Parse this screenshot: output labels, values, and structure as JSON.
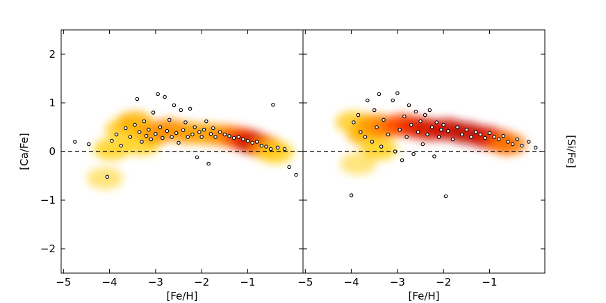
{
  "chart_data": [
    {
      "type": "scatter",
      "title": "",
      "xlabel": "[Fe/H]",
      "ylabel": "[Ca/Fe]",
      "xlim": [
        -5.05,
        0.2
      ],
      "ylim": [
        -2.5,
        2.5
      ],
      "xticks": [
        -5,
        -4,
        -3,
        -2,
        -1
      ],
      "xtick_labels": [
        "−5",
        "−4",
        "−3",
        "−2",
        "−1"
      ],
      "yticks": [
        -2,
        -1,
        0,
        1,
        2
      ],
      "ytick_labels": [
        "−2",
        "−1",
        "0",
        "1",
        "2"
      ],
      "reference_line": {
        "y": 0,
        "style": "dashed"
      },
      "grid": false,
      "density_band": [
        {
          "x": -3.95,
          "y": 0.05,
          "color": "#ffd21a"
        },
        {
          "x": -3.7,
          "y": 0.45,
          "color": "#ffcc22"
        },
        {
          "x": -3.45,
          "y": 0.6,
          "color": "#ffb000"
        },
        {
          "x": -3.3,
          "y": 0.15,
          "color": "#ffd21a"
        },
        {
          "x": -3.0,
          "y": 0.38,
          "color": "#ff9a00"
        },
        {
          "x": -2.7,
          "y": 0.45,
          "color": "#ff8c00"
        },
        {
          "x": -2.3,
          "y": 0.38,
          "color": "#ff9a00"
        },
        {
          "x": -1.9,
          "y": 0.36,
          "color": "#ffa500"
        },
        {
          "x": -1.5,
          "y": 0.33,
          "color": "#ff8c00"
        },
        {
          "x": -1.2,
          "y": 0.28,
          "color": "#ff5a00"
        },
        {
          "x": -1.0,
          "y": 0.22,
          "color": "#e82a00"
        },
        {
          "x": -0.8,
          "y": 0.15,
          "color": "#cc1100"
        },
        {
          "x": -0.6,
          "y": 0.08,
          "color": "#ff7a00"
        },
        {
          "x": -0.4,
          "y": -0.02,
          "color": "#ffd21a"
        },
        {
          "x": -4.1,
          "y": -0.55,
          "color": "#ffe066"
        }
      ],
      "points": [
        {
          "x": -4.75,
          "y": 0.2
        },
        {
          "x": -4.45,
          "y": 0.15
        },
        {
          "x": -4.05,
          "y": -0.52
        },
        {
          "x": -3.95,
          "y": 0.22
        },
        {
          "x": -3.85,
          "y": 0.35
        },
        {
          "x": -3.75,
          "y": 0.12
        },
        {
          "x": -3.65,
          "y": 0.48
        },
        {
          "x": -3.55,
          "y": 0.3
        },
        {
          "x": -3.45,
          "y": 0.55
        },
        {
          "x": -3.4,
          "y": 1.08
        },
        {
          "x": -3.35,
          "y": 0.4
        },
        {
          "x": -3.3,
          "y": 0.2
        },
        {
          "x": -3.25,
          "y": 0.62
        },
        {
          "x": -3.2,
          "y": 0.32
        },
        {
          "x": -3.15,
          "y": 0.45
        },
        {
          "x": -3.1,
          "y": 0.25
        },
        {
          "x": -3.05,
          "y": 0.8
        },
        {
          "x": -3.0,
          "y": 0.36
        },
        {
          "x": -2.95,
          "y": 1.18
        },
        {
          "x": -2.9,
          "y": 0.5
        },
        {
          "x": -2.85,
          "y": 0.28
        },
        {
          "x": -2.8,
          "y": 1.12
        },
        {
          "x": -2.75,
          "y": 0.42
        },
        {
          "x": -2.7,
          "y": 0.65
        },
        {
          "x": -2.65,
          "y": 0.3
        },
        {
          "x": -2.6,
          "y": 0.95
        },
        {
          "x": -2.55,
          "y": 0.38
        },
        {
          "x": -2.5,
          "y": 0.18
        },
        {
          "x": -2.45,
          "y": 0.85
        },
        {
          "x": -2.4,
          "y": 0.44
        },
        {
          "x": -2.35,
          "y": 0.6
        },
        {
          "x": -2.3,
          "y": 0.3
        },
        {
          "x": -2.25,
          "y": 0.88
        },
        {
          "x": -2.2,
          "y": 0.35
        },
        {
          "x": -2.15,
          "y": 0.5
        },
        {
          "x": -2.1,
          "y": -0.12
        },
        {
          "x": -2.05,
          "y": 0.4
        },
        {
          "x": -2.0,
          "y": 0.3
        },
        {
          "x": -1.95,
          "y": 0.45
        },
        {
          "x": -1.9,
          "y": 0.62
        },
        {
          "x": -1.85,
          "y": -0.25
        },
        {
          "x": -1.8,
          "y": 0.36
        },
        {
          "x": -1.75,
          "y": 0.48
        },
        {
          "x": -1.7,
          "y": 0.3
        },
        {
          "x": -1.6,
          "y": 0.4
        },
        {
          "x": -1.5,
          "y": 0.35
        },
        {
          "x": -1.4,
          "y": 0.32
        },
        {
          "x": -1.3,
          "y": 0.28
        },
        {
          "x": -1.2,
          "y": 0.3
        },
        {
          "x": -1.1,
          "y": 0.25
        },
        {
          "x": -1.0,
          "y": 0.22
        },
        {
          "x": -0.9,
          "y": 0.18
        },
        {
          "x": -0.8,
          "y": 0.2
        },
        {
          "x": -0.7,
          "y": 0.12
        },
        {
          "x": -0.6,
          "y": 0.1
        },
        {
          "x": -0.5,
          "y": 0.05
        },
        {
          "x": -0.45,
          "y": 0.96
        },
        {
          "x": -0.35,
          "y": 0.08
        },
        {
          "x": -0.2,
          "y": 0.05
        },
        {
          "x": -0.1,
          "y": -0.32
        },
        {
          "x": 0.05,
          "y": -0.48
        }
      ]
    },
    {
      "type": "scatter",
      "title": "",
      "xlabel": "[Fe/H]",
      "ylabel": "[Si/Fe]",
      "xlim": [
        -5.05,
        0.2
      ],
      "ylim": [
        -2.5,
        2.5
      ],
      "xticks": [
        -5,
        -4,
        -3,
        -2,
        -1
      ],
      "xtick_labels": [
        "−5",
        "−4",
        "−3",
        "−2",
        "−1"
      ],
      "reference_line": {
        "y": 0,
        "style": "dashed"
      },
      "grid": false,
      "density_band": [
        {
          "x": -3.95,
          "y": 0.6,
          "color": "#ffcc22"
        },
        {
          "x": -3.85,
          "y": -0.25,
          "color": "#ffe066"
        },
        {
          "x": -3.7,
          "y": 0.35,
          "color": "#ffb000"
        },
        {
          "x": -3.4,
          "y": 0.05,
          "color": "#ffd21a"
        },
        {
          "x": -3.5,
          "y": 0.55,
          "color": "#ff9a00"
        },
        {
          "x": -3.2,
          "y": 0.5,
          "color": "#ff7a00"
        },
        {
          "x": -2.9,
          "y": 0.55,
          "color": "#ff4a00"
        },
        {
          "x": -2.6,
          "y": 0.5,
          "color": "#e82a00"
        },
        {
          "x": -2.3,
          "y": 0.45,
          "color": "#d41a00"
        },
        {
          "x": -1.9,
          "y": 0.45,
          "color": "#cc1100"
        },
        {
          "x": -1.5,
          "y": 0.38,
          "color": "#c01000"
        },
        {
          "x": -1.1,
          "y": 0.3,
          "color": "#cc1100"
        },
        {
          "x": -0.8,
          "y": 0.22,
          "color": "#e82a00"
        },
        {
          "x": -0.6,
          "y": 0.15,
          "color": "#ff7a00"
        }
      ],
      "points": [
        {
          "x": -4.0,
          "y": -0.9
        },
        {
          "x": -3.95,
          "y": 0.6
        },
        {
          "x": -3.85,
          "y": 0.75
        },
        {
          "x": -3.8,
          "y": 0.4
        },
        {
          "x": -3.7,
          "y": 0.3
        },
        {
          "x": -3.65,
          "y": 1.05
        },
        {
          "x": -3.55,
          "y": 0.2
        },
        {
          "x": -3.5,
          "y": 0.85
        },
        {
          "x": -3.45,
          "y": 0.5
        },
        {
          "x": -3.4,
          "y": 1.18
        },
        {
          "x": -3.35,
          "y": 0.1
        },
        {
          "x": -3.3,
          "y": 0.65
        },
        {
          "x": -3.2,
          "y": 0.35
        },
        {
          "x": -3.1,
          "y": 1.05
        },
        {
          "x": -3.05,
          "y": 0.0
        },
        {
          "x": -3.0,
          "y": 1.2
        },
        {
          "x": -2.95,
          "y": 0.45
        },
        {
          "x": -2.9,
          "y": -0.18
        },
        {
          "x": -2.85,
          "y": 0.72
        },
        {
          "x": -2.8,
          "y": 0.3
        },
        {
          "x": -2.75,
          "y": 0.95
        },
        {
          "x": -2.7,
          "y": 0.55
        },
        {
          "x": -2.65,
          "y": -0.05
        },
        {
          "x": -2.6,
          "y": 0.82
        },
        {
          "x": -2.55,
          "y": 0.4
        },
        {
          "x": -2.5,
          "y": 0.62
        },
        {
          "x": -2.45,
          "y": 0.15
        },
        {
          "x": -2.4,
          "y": 0.75
        },
        {
          "x": -2.35,
          "y": 0.35
        },
        {
          "x": -2.3,
          "y": 0.85
        },
        {
          "x": -2.25,
          "y": 0.5
        },
        {
          "x": -2.2,
          "y": -0.1
        },
        {
          "x": -2.15,
          "y": 0.6
        },
        {
          "x": -2.1,
          "y": 0.3
        },
        {
          "x": -2.05,
          "y": 0.45
        },
        {
          "x": -2.0,
          "y": 0.55
        },
        {
          "x": -1.95,
          "y": -0.92
        },
        {
          "x": -1.9,
          "y": 0.42
        },
        {
          "x": -1.8,
          "y": 0.25
        },
        {
          "x": -1.7,
          "y": 0.5
        },
        {
          "x": -1.6,
          "y": 0.35
        },
        {
          "x": -1.5,
          "y": 0.45
        },
        {
          "x": -1.4,
          "y": 0.3
        },
        {
          "x": -1.3,
          "y": 0.4
        },
        {
          "x": -1.2,
          "y": 0.35
        },
        {
          "x": -1.1,
          "y": 0.28
        },
        {
          "x": -1.0,
          "y": 0.38
        },
        {
          "x": -0.9,
          "y": 0.3
        },
        {
          "x": -0.8,
          "y": 0.25
        },
        {
          "x": -0.7,
          "y": 0.32
        },
        {
          "x": -0.6,
          "y": 0.2
        },
        {
          "x": -0.5,
          "y": 0.15
        },
        {
          "x": -0.4,
          "y": 0.25
        },
        {
          "x": -0.3,
          "y": 0.12
        },
        {
          "x": -0.15,
          "y": 0.2
        },
        {
          "x": 0.0,
          "y": 0.08
        }
      ]
    }
  ]
}
